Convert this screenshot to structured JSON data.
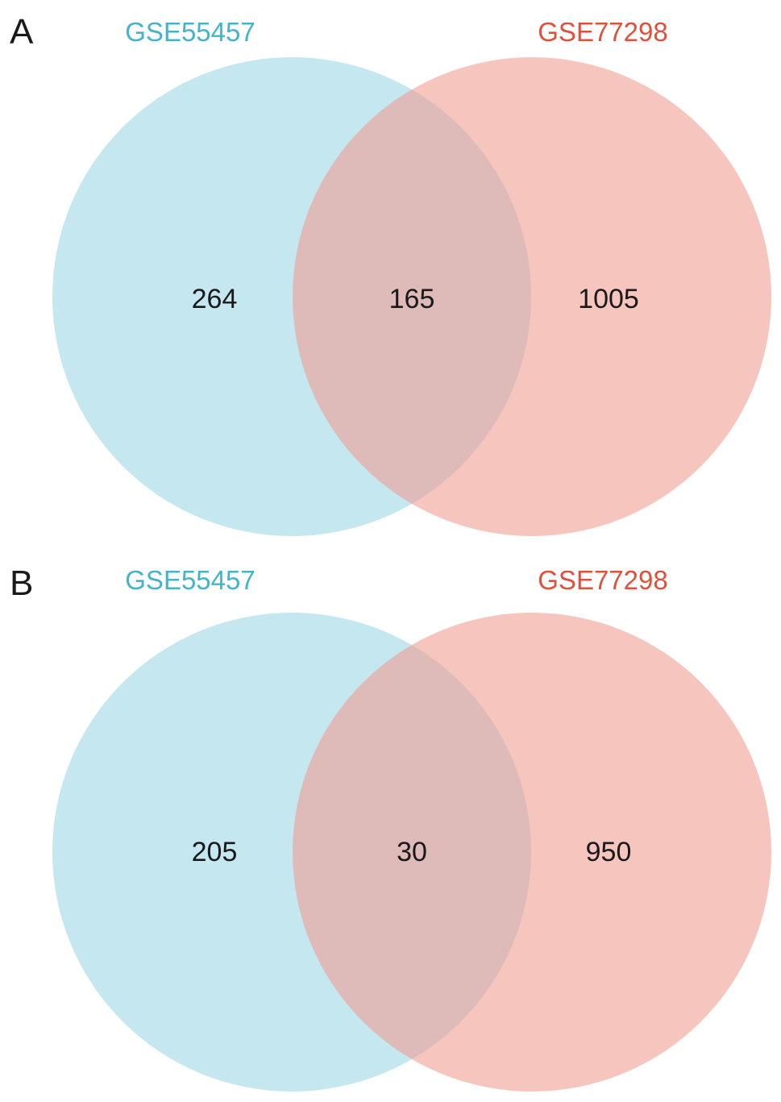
{
  "colors": {
    "set_a": "#8ccfdf",
    "set_b": "#ee9f93",
    "label_a": "#45b3c9",
    "label_b": "#e0503a"
  },
  "panels": [
    {
      "letter": "A",
      "set_a_name": "GSE55457",
      "set_b_name": "GSE77298",
      "only_a": "264",
      "both": "165",
      "only_b": "1005"
    },
    {
      "letter": "B",
      "set_a_name": "GSE55457",
      "set_b_name": "GSE77298",
      "only_a": "205",
      "both": "30",
      "only_b": "950"
    }
  ]
}
